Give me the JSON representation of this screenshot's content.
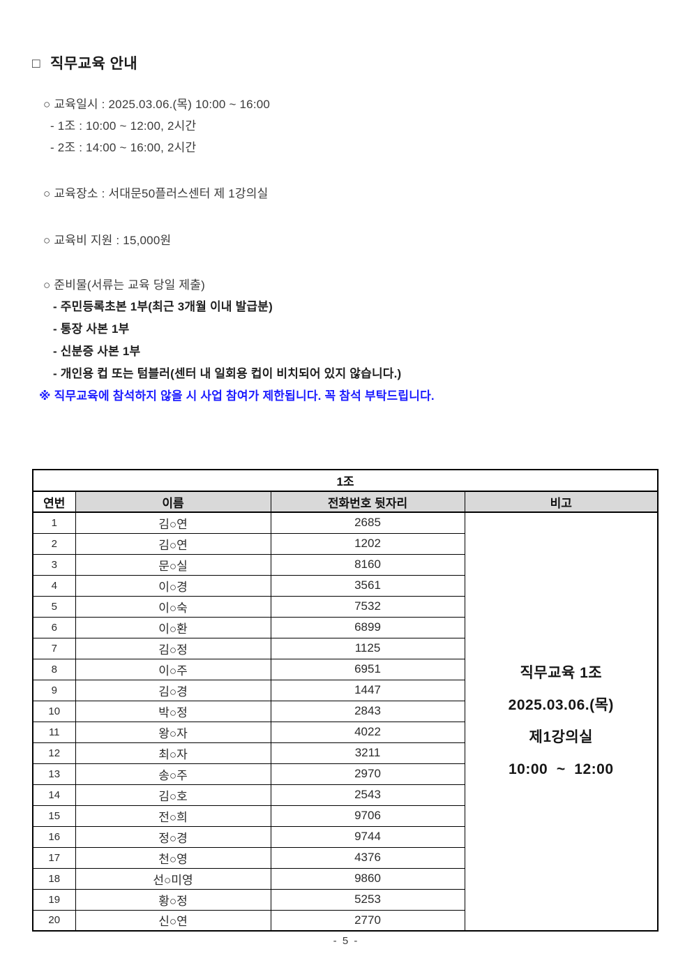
{
  "colors": {
    "notice_blue": "#1c1cff",
    "header_gray": "#d9d9d9",
    "text_dark": "#1f1f1f"
  },
  "heading": {
    "checkbox": "□",
    "title": "직무교육 안내"
  },
  "info": {
    "schedule": "○ 교육일시 : 2025.03.06.(목) 10:00 ~ 16:00",
    "schedule_sub": [
      "- 1조 : 10:00 ~ 12:00, 2시간",
      "- 2조 : 14:00 ~ 16:00, 2시간"
    ],
    "location": "○ 교육장소 : 서대문50플러스센터 제 1강의실",
    "fee": "○ 교육비 지원 : 15,000원",
    "materials": "○ 준비물(서류는 교육 당일 제출)",
    "materials_items": [
      "- 주민등록초본 1부(최근 3개월 이내 발급분)",
      "- 통장 사본 1부",
      "- 신분증 사본 1부",
      "- 개인용 컵 또는 텀블러(센터 내 일회용 컵이 비치되어 있지 않습니다.)"
    ],
    "notice": "※ 직무교육에 참석하지 않을 시 사업 참여가 제한됩니다. 꼭 참석 부탁드립니다."
  },
  "table": {
    "title": "1조",
    "headers": [
      "연번",
      "이름",
      "전화번호 뒷자리",
      "비고"
    ],
    "rows": [
      {
        "no": "1",
        "name": "김○연",
        "phone": "2685"
      },
      {
        "no": "2",
        "name": "김○연",
        "phone": "1202"
      },
      {
        "no": "3",
        "name": "문○실",
        "phone": "8160"
      },
      {
        "no": "4",
        "name": "이○경",
        "phone": "3561"
      },
      {
        "no": "5",
        "name": "이○숙",
        "phone": "7532"
      },
      {
        "no": "6",
        "name": "이○환",
        "phone": "6899"
      },
      {
        "no": "7",
        "name": "김○정",
        "phone": "1125"
      },
      {
        "no": "8",
        "name": "이○주",
        "phone": "6951"
      },
      {
        "no": "9",
        "name": "김○경",
        "phone": "1447"
      },
      {
        "no": "10",
        "name": "박○정",
        "phone": "2843"
      },
      {
        "no": "11",
        "name": "왕○자",
        "phone": "4022"
      },
      {
        "no": "12",
        "name": "최○자",
        "phone": "3211"
      },
      {
        "no": "13",
        "name": "송○주",
        "phone": "2970"
      },
      {
        "no": "14",
        "name": "김○호",
        "phone": "2543"
      },
      {
        "no": "15",
        "name": "전○희",
        "phone": "9706"
      },
      {
        "no": "16",
        "name": "정○경",
        "phone": "9744"
      },
      {
        "no": "17",
        "name": "천○영",
        "phone": "4376"
      },
      {
        "no": "18",
        "name": "선○미영",
        "phone": "9860"
      },
      {
        "no": "19",
        "name": "황○정",
        "phone": "5253"
      },
      {
        "no": "20",
        "name": "신○연",
        "phone": "2770"
      }
    ],
    "remark_lines": [
      "직무교육 1조",
      "2025.03.06.(목)",
      "제1강의실",
      "10:00  ~  12:00"
    ]
  },
  "footer": {
    "page_number": "- 5 -"
  }
}
